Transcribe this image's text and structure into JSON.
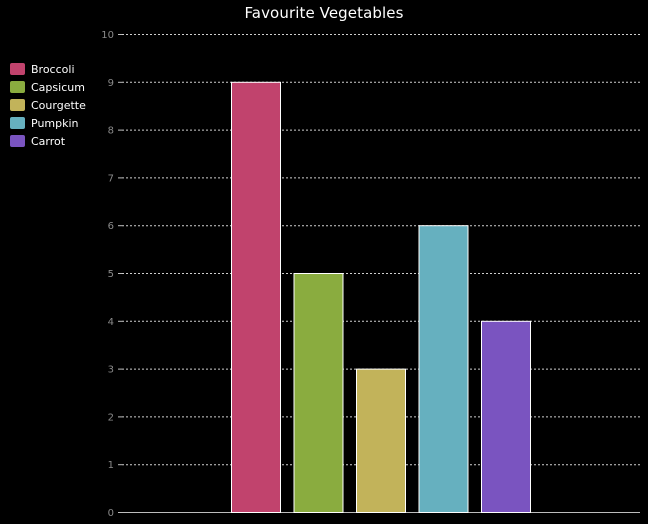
{
  "chart_data": {
    "type": "bar",
    "title": "Favourite Vegetables",
    "xlabel": "",
    "ylabel": "",
    "categories": [
      "Broccoli",
      "Capsicum",
      "Courgette",
      "Pumpkin",
      "Carrot"
    ],
    "values": [
      9,
      5,
      3,
      6,
      4
    ],
    "colors": [
      "#c1436d",
      "#8aac3f",
      "#c2b35a",
      "#66b0bf",
      "#7a54c0"
    ],
    "ylim": [
      0,
      10
    ],
    "yticks": [
      "0",
      "1",
      "2",
      "3",
      "4",
      "5",
      "6",
      "7",
      "8",
      "9",
      "10"
    ],
    "grid": true,
    "grid_style": "dashed",
    "legend_position": "top-left",
    "background": "#000000"
  }
}
